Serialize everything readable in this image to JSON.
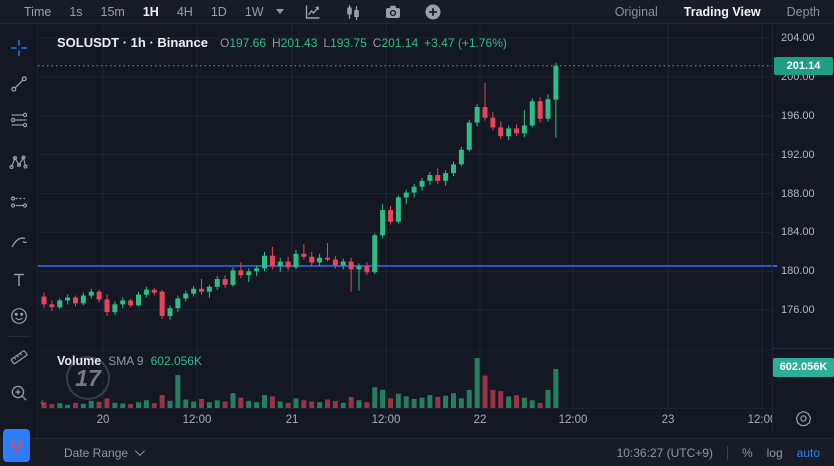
{
  "topbar": {
    "timeframes": [
      "Time",
      "1s",
      "15m",
      "1H",
      "4H",
      "1D",
      "1W"
    ],
    "active_timeframe": "1H",
    "view_tabs": [
      {
        "label": "Original",
        "active": false
      },
      {
        "label": "Trading View",
        "active": true
      },
      {
        "label": "Depth",
        "active": false
      }
    ]
  },
  "legend": {
    "symbol": "SOLUSDT · 1h · Binance",
    "o_label": "O",
    "o": "197.66",
    "h_label": "H",
    "h": "201.43",
    "l_label": "L",
    "l": "193.75",
    "c_label": "C",
    "c": "201.14",
    "change": "+3.47 (+1.76%)"
  },
  "volume_legend": {
    "label": "Volume",
    "sma_label": "SMA 9",
    "value": "602.056K",
    "watermark": "17"
  },
  "price_axis": {
    "last_price_badge": "201.14",
    "volume_badge": "602.056K"
  },
  "bottombar": {
    "date_range_label": "Date Range",
    "clock": "10:36:27 (UTC+9)",
    "percent_label": "%",
    "log_label": "log",
    "auto_label": "auto"
  },
  "colors": {
    "up": "#2ebd85",
    "down": "#e8455c",
    "volume_up": "rgba(46,189,133,0.62)",
    "volume_down": "rgba(232,69,92,0.62)",
    "badge_up": "#1f9e86",
    "badge_volume": "#2fae97",
    "drawn_line_blue": "#2e62f4",
    "accent_blue": "#2d7ff9",
    "grid": "rgba(255,255,255,0.06)"
  },
  "chart_data": {
    "type": "candlestick",
    "symbol": "SOLUSDT",
    "interval": "1h",
    "exchange": "Binance",
    "title": "SOLUSDT · 1h · Binance",
    "last_candle": {
      "open": 197.66,
      "high": 201.43,
      "low": 193.75,
      "close": 201.14,
      "change": "+3.47 (+1.76%)"
    },
    "last_price": 201.14,
    "blue_line_price": 180.55,
    "price_gridlines": [
      204,
      200,
      196,
      192,
      188,
      184,
      180,
      176
    ],
    "y_axis_range": [
      174.5,
      205.5
    ],
    "time_labels": [
      "20",
      "12:00",
      "21",
      "12:00",
      "22",
      "12:00",
      "23",
      "12:00"
    ],
    "volume_sma_period": 9,
    "volume_last": "602.056K",
    "candles_format": [
      "open",
      "high",
      "low",
      "close",
      "volume_K"
    ],
    "candles": [
      [
        177.4,
        177.8,
        176.2,
        176.6,
        90
      ],
      [
        176.6,
        177.0,
        175.9,
        176.3,
        60
      ],
      [
        176.3,
        177.2,
        176.1,
        177.0,
        75
      ],
      [
        177.0,
        177.6,
        176.6,
        177.3,
        50
      ],
      [
        177.3,
        177.5,
        176.4,
        176.7,
        80
      ],
      [
        176.7,
        177.8,
        176.5,
        177.5,
        65
      ],
      [
        177.5,
        178.2,
        177.2,
        177.9,
        110
      ],
      [
        177.9,
        178.1,
        176.8,
        177.1,
        95
      ],
      [
        177.1,
        177.6,
        175.4,
        175.8,
        150
      ],
      [
        175.8,
        176.9,
        175.5,
        176.6,
        80
      ],
      [
        176.6,
        177.3,
        176.2,
        177.0,
        70
      ],
      [
        177.0,
        177.2,
        176.3,
        176.5,
        60
      ],
      [
        176.5,
        177.9,
        176.4,
        177.6,
        90
      ],
      [
        177.6,
        178.4,
        177.3,
        178.1,
        120
      ],
      [
        178.1,
        178.3,
        177.5,
        177.8,
        75
      ],
      [
        177.9,
        178.1,
        175.1,
        175.4,
        200
      ],
      [
        175.4,
        176.5,
        175.0,
        176.2,
        110
      ],
      [
        176.2,
        177.5,
        175.8,
        177.2,
        510
      ],
      [
        177.2,
        178.0,
        176.9,
        177.7,
        130
      ],
      [
        177.7,
        178.5,
        177.4,
        178.2,
        100
      ],
      [
        178.2,
        179.2,
        177.6,
        177.9,
        140
      ],
      [
        177.9,
        178.6,
        177.3,
        178.4,
        90
      ],
      [
        178.4,
        179.5,
        178.1,
        179.2,
        120
      ],
      [
        179.2,
        179.6,
        178.3,
        178.6,
        100
      ],
      [
        178.6,
        180.4,
        178.4,
        180.1,
        230
      ],
      [
        180.1,
        180.9,
        179.3,
        179.6,
        160
      ],
      [
        179.6,
        180.3,
        178.9,
        180.0,
        110
      ],
      [
        180.0,
        180.6,
        179.5,
        180.3,
        90
      ],
      [
        180.3,
        182.0,
        180.0,
        181.6,
        200
      ],
      [
        181.6,
        182.5,
        180.2,
        180.5,
        180
      ],
      [
        180.5,
        181.4,
        179.9,
        181.0,
        100
      ],
      [
        181.0,
        181.5,
        180.1,
        180.4,
        80
      ],
      [
        180.4,
        182.2,
        180.2,
        181.8,
        150
      ],
      [
        181.8,
        182.8,
        181.2,
        181.5,
        120
      ],
      [
        181.5,
        182.0,
        180.6,
        180.9,
        100
      ],
      [
        180.9,
        181.8,
        180.5,
        181.4,
        90
      ],
      [
        181.4,
        182.9,
        181.0,
        181.2,
        130
      ],
      [
        181.2,
        181.6,
        180.3,
        180.6,
        110
      ],
      [
        180.6,
        181.3,
        180.2,
        181.0,
        80
      ],
      [
        181.0,
        181.4,
        177.9,
        180.2,
        170
      ],
      [
        180.2,
        180.8,
        178.0,
        180.5,
        120
      ],
      [
        180.5,
        180.9,
        179.6,
        179.9,
        90
      ],
      [
        179.9,
        183.9,
        179.7,
        183.7,
        320
      ],
      [
        183.7,
        186.9,
        183.4,
        186.3,
        280
      ],
      [
        186.3,
        186.7,
        184.8,
        185.1,
        150
      ],
      [
        185.1,
        187.8,
        184.9,
        187.6,
        220
      ],
      [
        187.6,
        188.4,
        186.9,
        188.1,
        180
      ],
      [
        188.1,
        189.0,
        187.6,
        188.7,
        140
      ],
      [
        188.7,
        189.6,
        188.3,
        189.3,
        160
      ],
      [
        189.3,
        190.2,
        188.9,
        189.9,
        200
      ],
      [
        189.9,
        190.6,
        189.0,
        189.3,
        170
      ],
      [
        189.3,
        190.4,
        188.8,
        190.1,
        190
      ],
      [
        190.1,
        191.3,
        189.8,
        191.0,
        230
      ],
      [
        191.0,
        192.8,
        190.8,
        192.5,
        150
      ],
      [
        192.5,
        195.6,
        192.3,
        195.3,
        280
      ],
      [
        195.3,
        197.2,
        194.9,
        196.9,
        770
      ],
      [
        196.9,
        199.4,
        195.5,
        195.8,
        500
      ],
      [
        195.8,
        196.4,
        194.5,
        194.8,
        280
      ],
      [
        194.8,
        195.4,
        193.6,
        193.9,
        260
      ],
      [
        193.9,
        195.0,
        193.5,
        194.7,
        180
      ],
      [
        194.7,
        195.1,
        193.9,
        194.2,
        200
      ],
      [
        194.2,
        196.6,
        193.8,
        195.0,
        160
      ],
      [
        195.0,
        197.8,
        194.8,
        197.5,
        120
      ],
      [
        197.5,
        197.9,
        195.3,
        195.7,
        80
      ],
      [
        195.7,
        198.2,
        195.4,
        197.7,
        280
      ],
      [
        197.66,
        201.43,
        193.75,
        201.14,
        602
      ]
    ]
  }
}
